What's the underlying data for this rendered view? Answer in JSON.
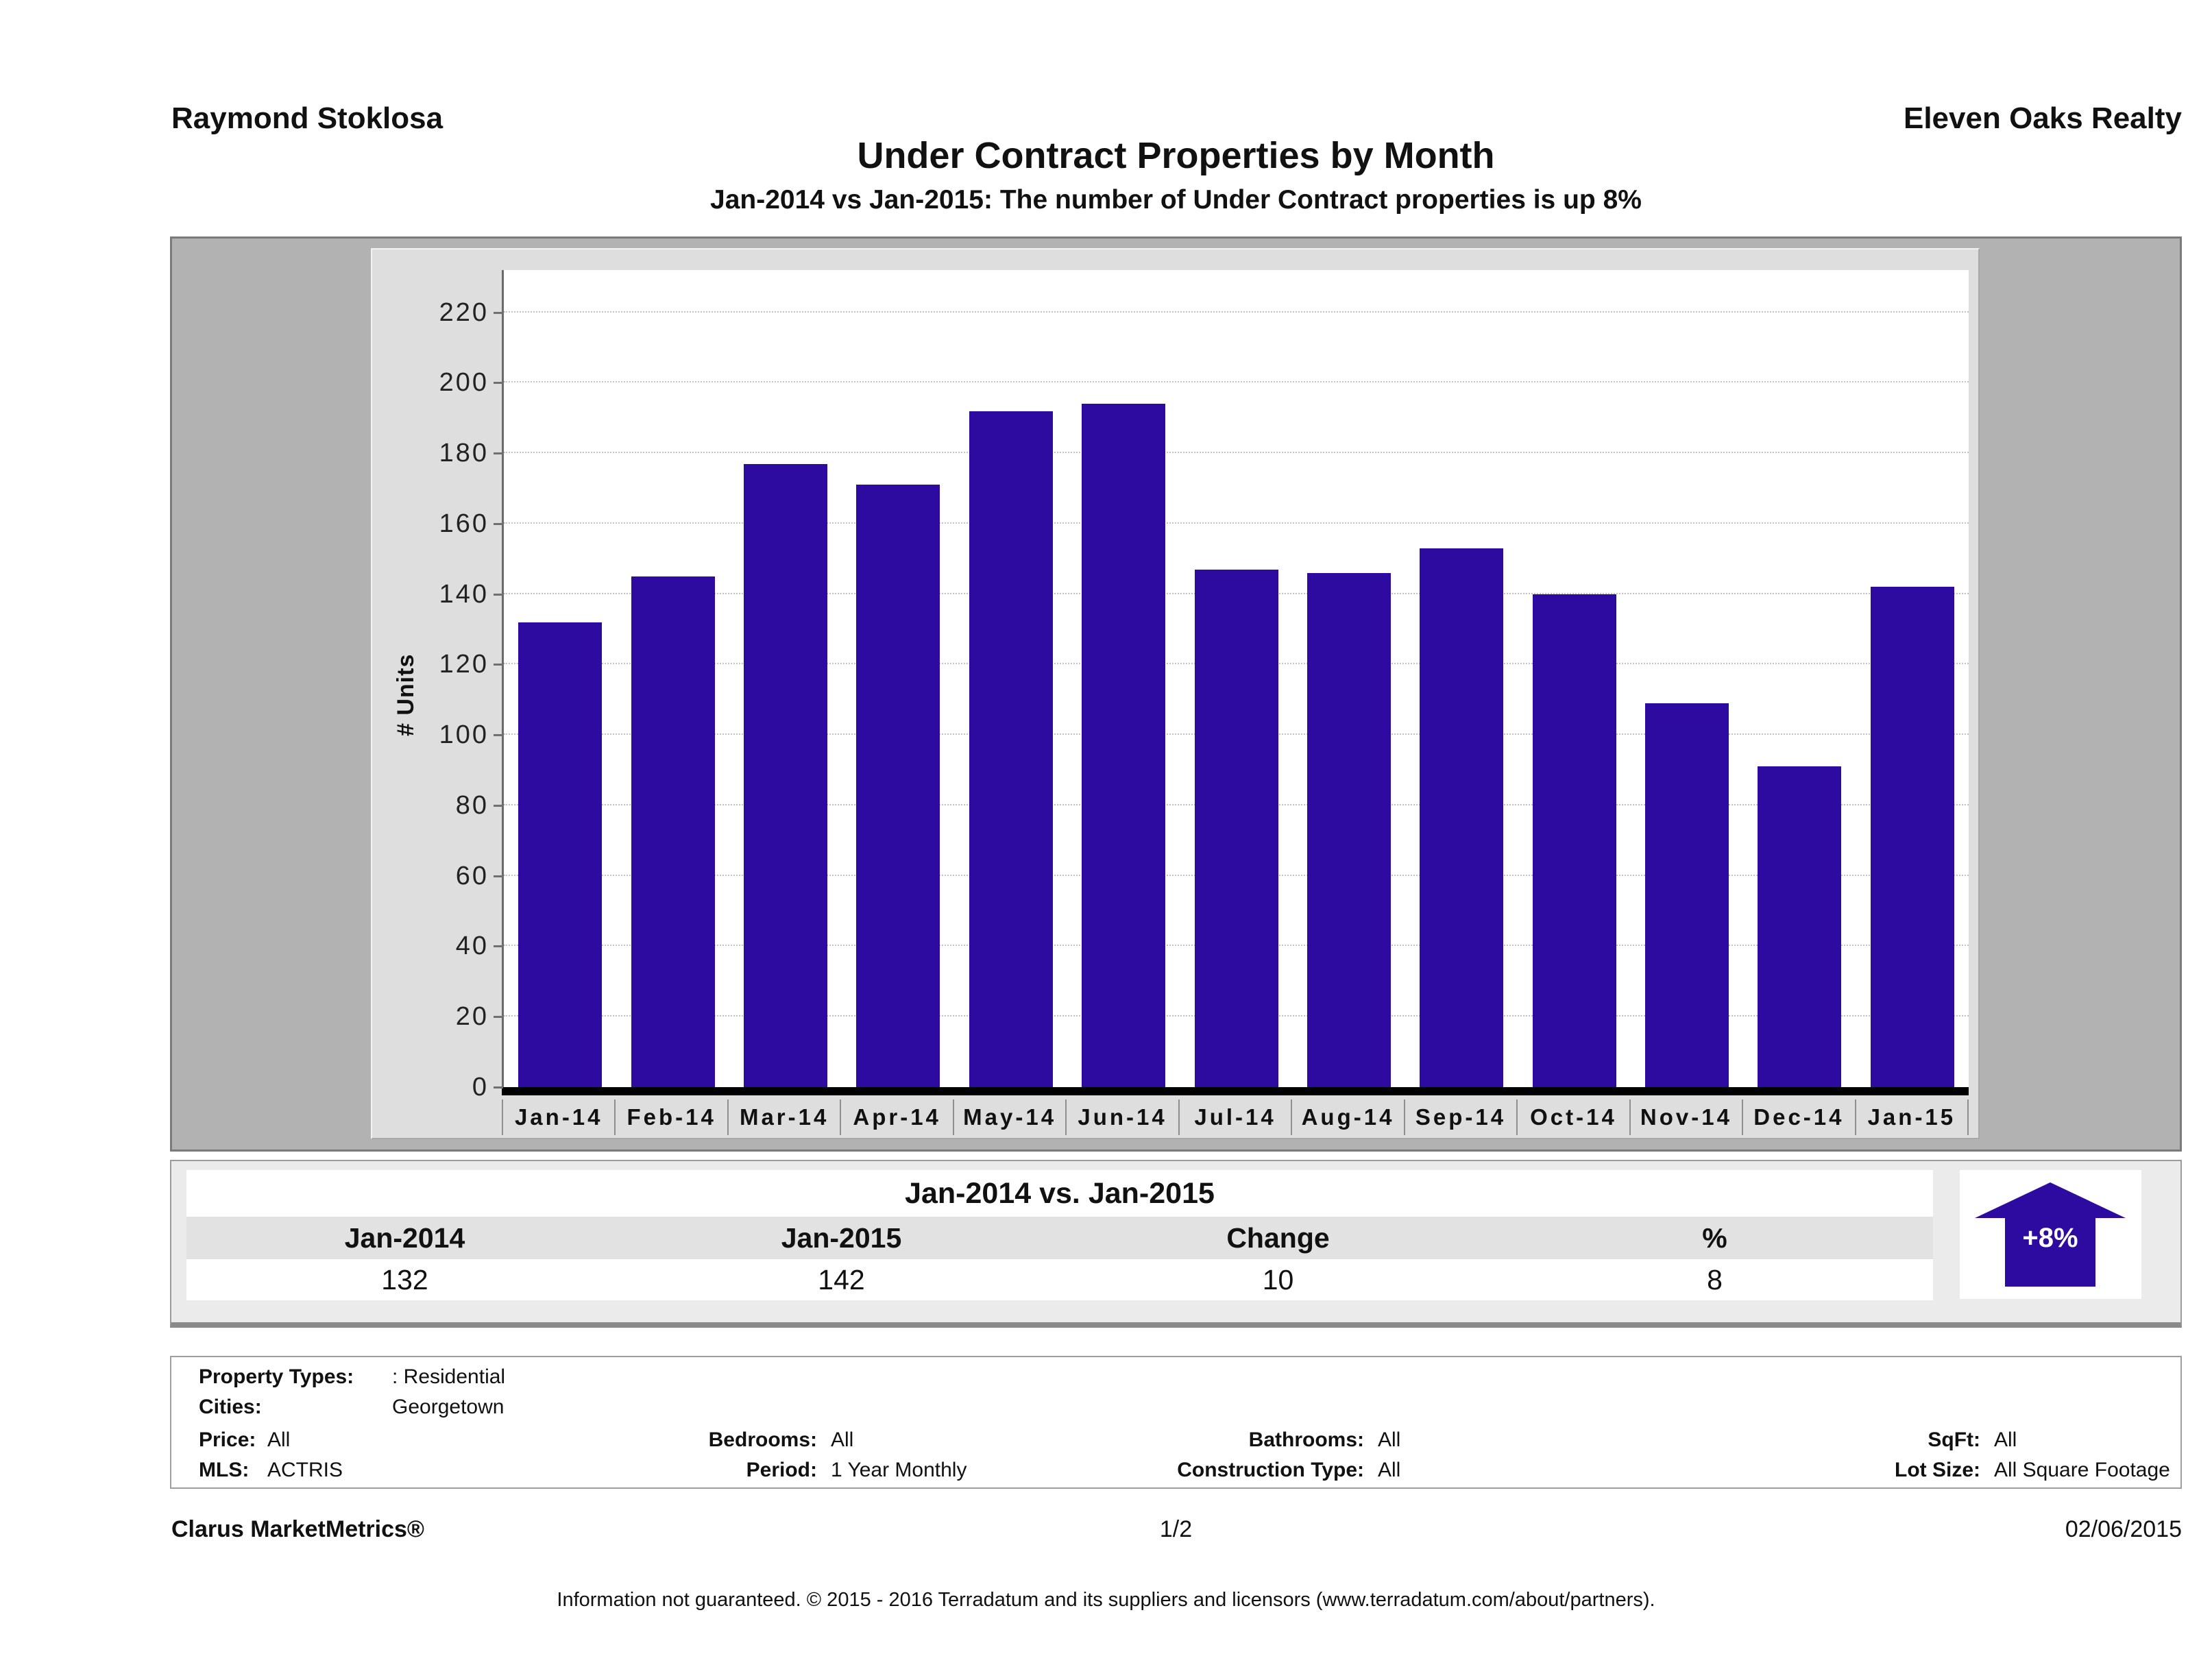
{
  "header": {
    "agent": "Raymond Stoklosa",
    "company": "Eleven Oaks Realty",
    "title": "Under Contract Properties by Month",
    "subtitle": "Jan-2014 vs Jan-2015: The number of Under Contract  properties is up 8%"
  },
  "chart_data": {
    "type": "bar",
    "title": "Under Contract Properties by Month",
    "categories": [
      "Jan-14",
      "Feb-14",
      "Mar-14",
      "Apr-14",
      "May-14",
      "Jun-14",
      "Jul-14",
      "Aug-14",
      "Sep-14",
      "Oct-14",
      "Nov-14",
      "Dec-14",
      "Jan-15"
    ],
    "values": [
      132,
      145,
      177,
      171,
      192,
      194,
      147,
      146,
      153,
      140,
      109,
      91,
      142
    ],
    "xlabel": "",
    "ylabel": "# Units",
    "ylim": [
      0,
      232
    ],
    "yticks": [
      0,
      20,
      40,
      60,
      80,
      100,
      120,
      140,
      160,
      180,
      200,
      220
    ],
    "grid": true,
    "legend": "none",
    "bar_color": "#2d0ba0"
  },
  "comparison": {
    "title": "Jan-2014 vs. Jan-2015",
    "columns": [
      "Jan-2014",
      "Jan-2015",
      "Change",
      "%"
    ],
    "values": [
      "132",
      "142",
      "10",
      "8"
    ],
    "badge": "+8%",
    "badge_color": "#2d0ba0"
  },
  "filters": {
    "property_types": {
      "label": "Property Types:",
      "value": ": Residential"
    },
    "cities": {
      "label": "Cities:",
      "value": "Georgetown"
    },
    "price": {
      "label": "Price:",
      "value": "All"
    },
    "bedrooms": {
      "label": "Bedrooms:",
      "value": "All"
    },
    "bathrooms": {
      "label": "Bathrooms:",
      "value": "All"
    },
    "sqft": {
      "label": "SqFt:",
      "value": "All"
    },
    "mls": {
      "label": "MLS:",
      "value": "ACTRIS"
    },
    "period": {
      "label": "Period:",
      "value": "1 Year Monthly"
    },
    "construction": {
      "label": "Construction Type:",
      "value": "All"
    },
    "lot_size": {
      "label": "Lot Size:",
      "value": "All Square Footage"
    }
  },
  "footer": {
    "brand": "Clarus MarketMetrics®",
    "page": "1/2",
    "date": "02/06/2015",
    "disclaimer": "Information not guaranteed. © 2015 - 2016 Terradatum and its suppliers and licensors (www.terradatum.com/about/partners)."
  }
}
